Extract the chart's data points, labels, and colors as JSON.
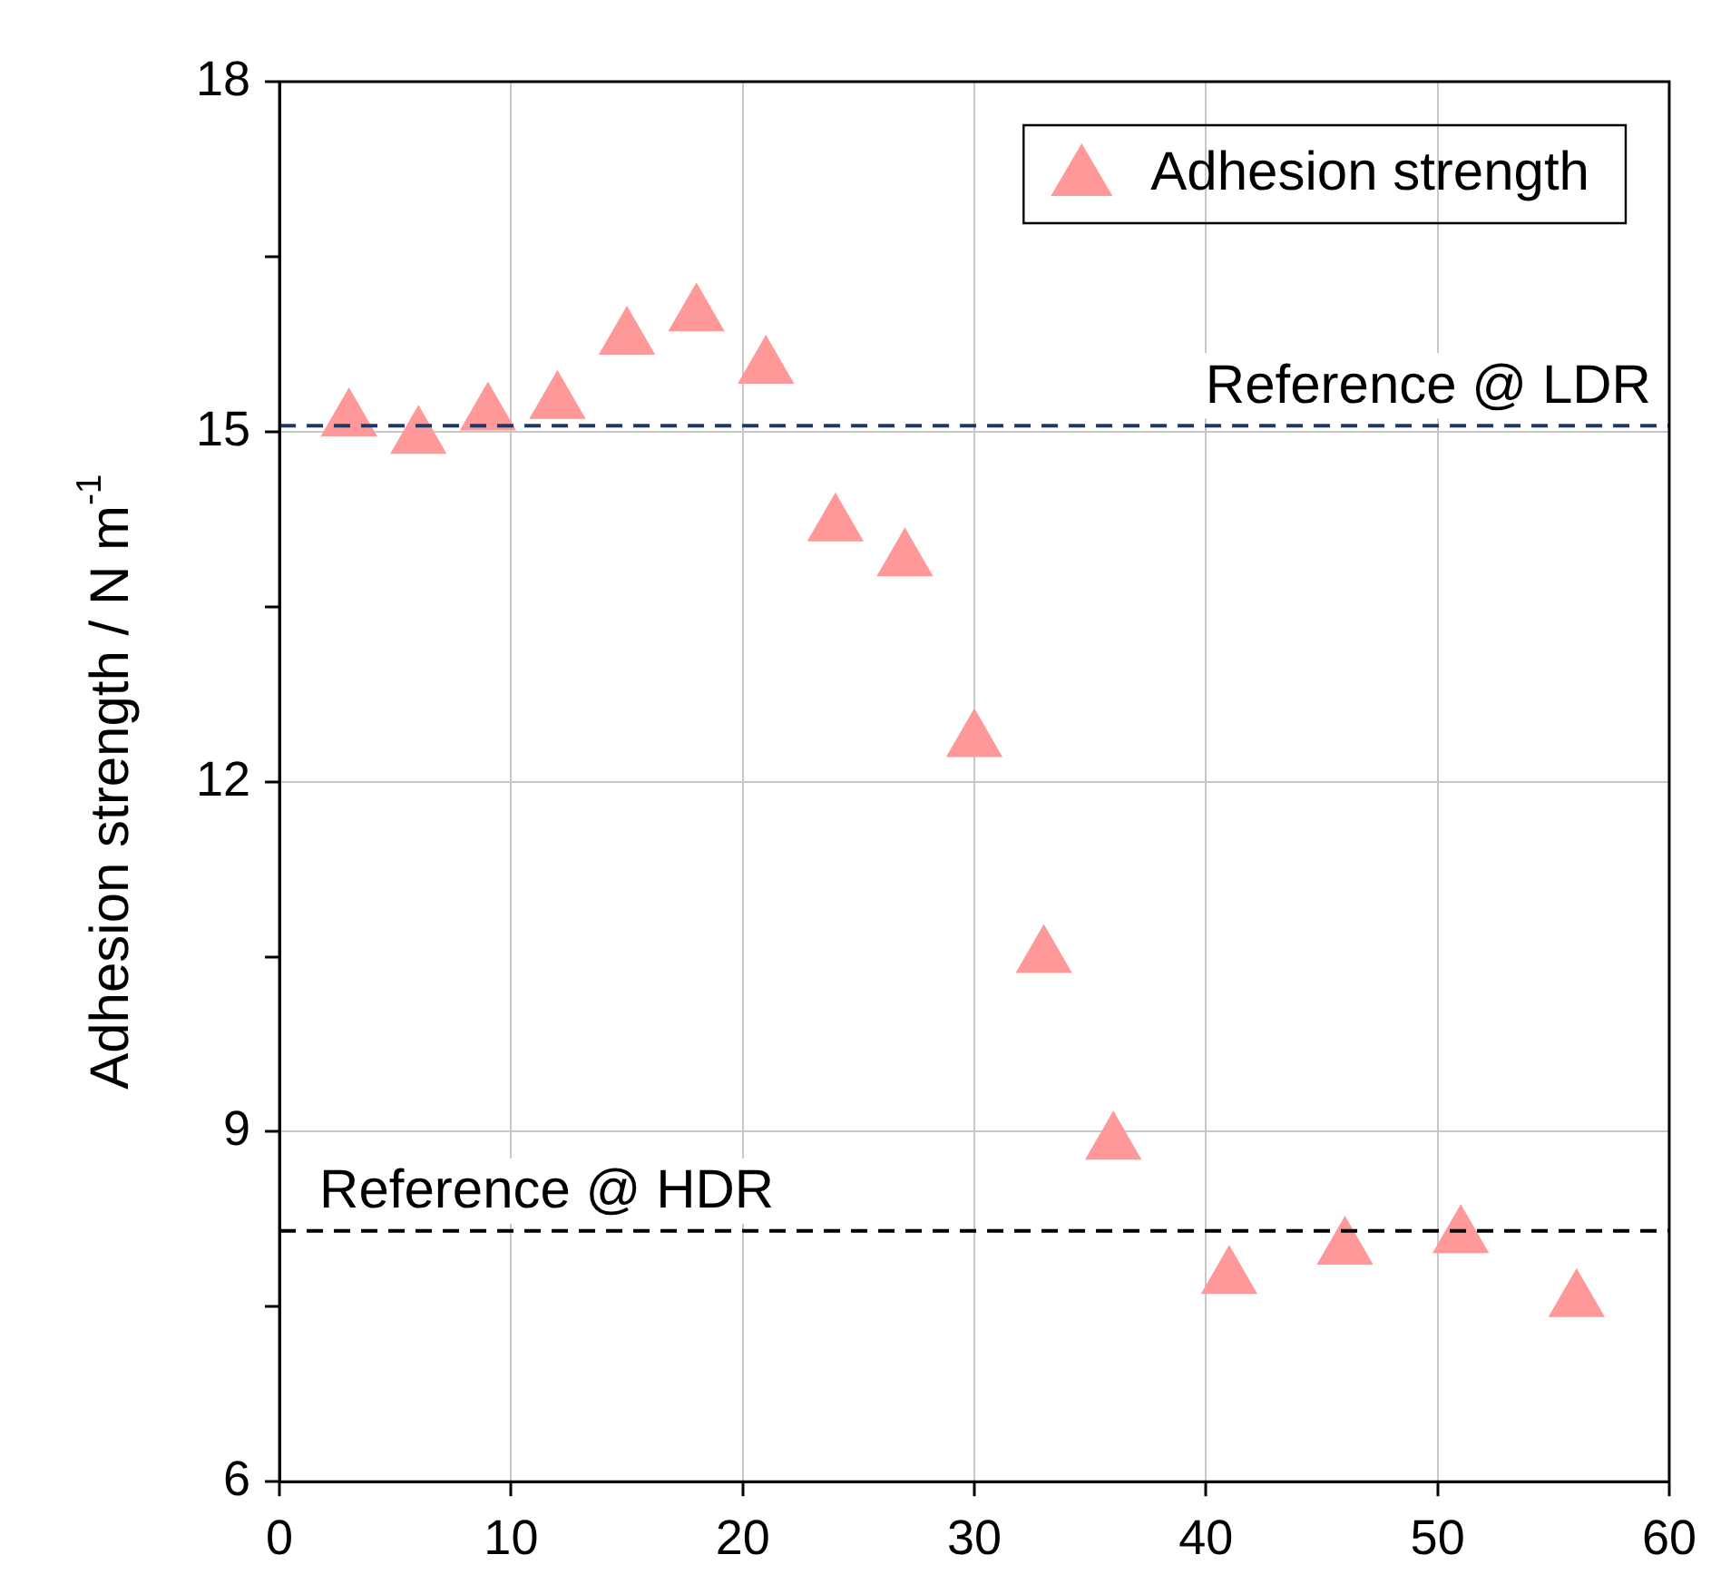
{
  "chart_data": {
    "type": "scatter",
    "ylabel": "Adhesion strength / N m$^{-1}$",
    "x": [
      3,
      6,
      9,
      12,
      15,
      18,
      21,
      24,
      27,
      30,
      33,
      36,
      41,
      46,
      51,
      56
    ],
    "series": [
      {
        "name": "Adhesion strength",
        "color": "#ff9999",
        "values": [
          15.1,
          14.95,
          15.15,
          15.25,
          15.8,
          16.0,
          15.55,
          14.2,
          13.9,
          12.35,
          10.5,
          8.9,
          7.75,
          8.0,
          8.1,
          7.55
        ]
      }
    ],
    "xlim": [
      0,
      60
    ],
    "xticks": [
      0,
      10,
      20,
      30,
      40,
      50,
      60
    ],
    "ylim": [
      6,
      18
    ],
    "yticks": [
      6,
      {
        "value": 7.5,
        "label": null
      },
      9,
      {
        "value": 10.5,
        "label": null
      },
      12,
      {
        "value": 13.5,
        "label": null
      },
      15,
      {
        "value": 16.5,
        "label": null
      },
      18
    ],
    "ref_lines": [
      {
        "axis": "y",
        "value": 15.05,
        "label": "Reference @ LDR",
        "color": "#1f3864",
        "line_style": "dashed"
      },
      {
        "axis": "y",
        "value": 8.15,
        "label": "Reference @ HDR",
        "color": "#000000",
        "line_style": "dashed"
      }
    ],
    "grid": true,
    "legend": "top right",
    "marker": "triangle"
  }
}
